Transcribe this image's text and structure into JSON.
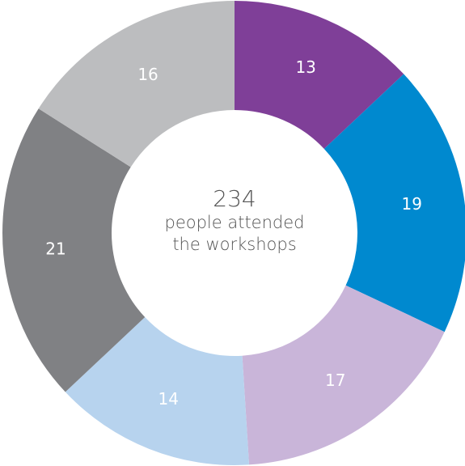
{
  "chart_data": {
    "type": "donut",
    "values": [
      13,
      19,
      17,
      14,
      21,
      16
    ],
    "colors": [
      "#7f3f98",
      "#0089cf",
      "#c9b5d9",
      "#b7d3ee",
      "#808184",
      "#bcbdbf"
    ],
    "center_labels": [
      "234",
      "people attended",
      "the workshops"
    ]
  }
}
